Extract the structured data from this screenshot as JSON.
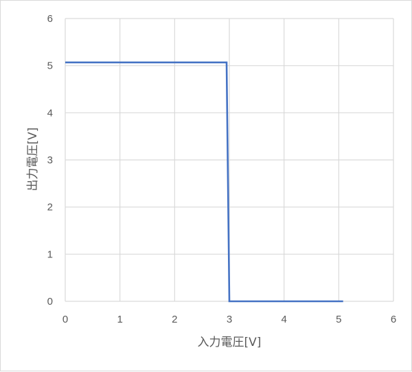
{
  "chart_data": {
    "type": "line",
    "title": "",
    "xlabel": "入力電圧[V]",
    "ylabel": "出力電圧[V]",
    "xlim": [
      0,
      6
    ],
    "ylim": [
      0,
      6
    ],
    "xticks": [
      "0",
      "1",
      "2",
      "3",
      "4",
      "5",
      "6"
    ],
    "yticks": [
      "0",
      "1",
      "2",
      "3",
      "4",
      "5",
      "6"
    ],
    "grid": true,
    "series": [
      {
        "color": "#4472c4",
        "x": [
          0,
          2.95,
          3.0,
          5.08
        ],
        "y": [
          5.07,
          5.07,
          0,
          0
        ]
      }
    ]
  }
}
